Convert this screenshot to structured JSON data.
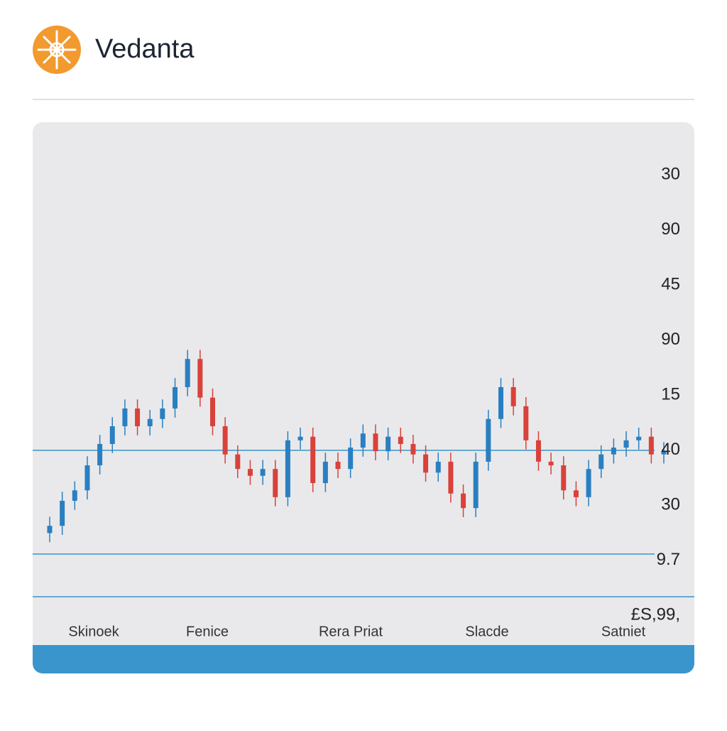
{
  "header": {
    "title": "Vedanta"
  },
  "chart_data": {
    "type": "candlestick",
    "ylim": [
      0,
      100
    ],
    "y_labels": [
      "30",
      "90",
      "45",
      "90",
      "15",
      "40",
      "30",
      "9.7",
      "£S,99,"
    ],
    "x_labels": [
      "Skinoek",
      "Fenice",
      "Rera Priat",
      "Slacde",
      "Satniet"
    ],
    "reference_lines": [
      32.2,
      9.4,
      0
    ],
    "up_color": "#2a7fc1",
    "down_color": "#d9413a",
    "line_color": "#3a95cc",
    "open": [
      14.0,
      15.6,
      21.1,
      23.4,
      28.9,
      33.6,
      37.5,
      41.4,
      37.5,
      39.1,
      41.4,
      46.1,
      52.3,
      43.8,
      37.5,
      31.3,
      28.1,
      26.6,
      28.1,
      21.9,
      34.4,
      35.2,
      25.0,
      29.7,
      28.1,
      32.8,
      35.9,
      32.0,
      35.2,
      33.6,
      31.3,
      27.3,
      29.7,
      22.7,
      19.5,
      29.7,
      39.1,
      46.1,
      41.9,
      34.4,
      29.7,
      28.9,
      23.4,
      21.9,
      28.1,
      31.3,
      32.8,
      34.4,
      35.2,
      31.3
    ],
    "high": [
      17.6,
      23.1,
      25.4,
      30.9,
      35.6,
      39.5,
      43.4,
      43.4,
      41.1,
      43.4,
      48.1,
      54.3,
      54.3,
      45.8,
      39.5,
      33.3,
      30.1,
      30.1,
      30.1,
      36.4,
      37.2,
      37.2,
      31.7,
      31.7,
      34.8,
      37.9,
      37.9,
      37.2,
      37.2,
      35.6,
      33.3,
      31.7,
      31.7,
      24.7,
      31.7,
      41.1,
      48.1,
      48.1,
      43.9,
      36.4,
      31.7,
      30.9,
      25.4,
      30.1,
      33.3,
      34.8,
      36.4,
      37.2,
      37.2,
      34.0
    ],
    "low": [
      12.0,
      13.6,
      19.1,
      21.4,
      26.9,
      31.6,
      35.5,
      35.5,
      35.5,
      37.1,
      39.4,
      44.1,
      41.8,
      35.5,
      29.3,
      26.1,
      24.6,
      24.6,
      19.9,
      19.9,
      32.4,
      23.0,
      23.0,
      26.1,
      26.1,
      30.8,
      30.0,
      30.0,
      31.6,
      29.3,
      25.3,
      25.3,
      20.7,
      17.5,
      17.5,
      27.7,
      37.1,
      39.9,
      32.4,
      27.7,
      26.9,
      21.4,
      19.9,
      19.9,
      26.1,
      29.3,
      30.8,
      32.4,
      29.3,
      29.3
    ],
    "close": [
      15.6,
      21.1,
      23.4,
      28.9,
      33.6,
      37.5,
      41.4,
      37.5,
      39.1,
      41.4,
      46.1,
      52.3,
      43.8,
      37.5,
      31.3,
      28.1,
      26.6,
      28.1,
      21.9,
      34.4,
      35.2,
      25.0,
      29.7,
      28.1,
      32.8,
      35.9,
      32.0,
      35.2,
      33.6,
      31.3,
      27.3,
      29.7,
      22.7,
      19.5,
      29.7,
      39.1,
      46.1,
      41.9,
      34.4,
      29.7,
      28.9,
      23.4,
      21.9,
      28.1,
      31.3,
      32.8,
      34.4,
      35.2,
      31.3,
      32.0
    ]
  }
}
